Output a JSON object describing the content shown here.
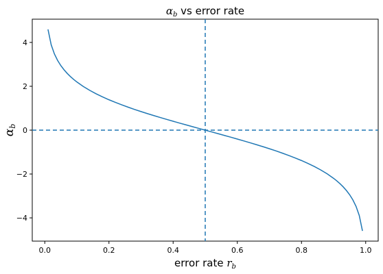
{
  "chart_data": {
    "type": "line",
    "title": {
      "symbol": "α",
      "sub": "b",
      "rest": " vs error rate"
    },
    "xlabel": {
      "text": "error rate ",
      "symbol": "r",
      "sub": "b"
    },
    "ylabel": {
      "symbol": "α",
      "sub": "b"
    },
    "xlim": [
      -0.039,
      1.039
    ],
    "ylim": [
      -5.06,
      5.06
    ],
    "xticks": [
      0.0,
      0.2,
      0.4,
      0.6,
      0.8,
      1.0
    ],
    "yticks": [
      -4,
      -2,
      0,
      2,
      4
    ],
    "xtick_labels": [
      "0.0",
      "0.2",
      "0.4",
      "0.6",
      "0.8",
      "1.0"
    ],
    "ytick_labels": [
      "−4",
      "−2",
      "0",
      "2",
      "4"
    ],
    "series": [
      {
        "color": "#1f77b4",
        "x": [
          0.01,
          0.02,
          0.03,
          0.04,
          0.05,
          0.06,
          0.07,
          0.08,
          0.09,
          0.1,
          0.12,
          0.14,
          0.16,
          0.18,
          0.2,
          0.22,
          0.24,
          0.26,
          0.28,
          0.3,
          0.32,
          0.34,
          0.36,
          0.38,
          0.4,
          0.42,
          0.44,
          0.46,
          0.48,
          0.5,
          0.52,
          0.54,
          0.56,
          0.58,
          0.6,
          0.62,
          0.64,
          0.66,
          0.68,
          0.7,
          0.72,
          0.74,
          0.76,
          0.78,
          0.8,
          0.82,
          0.84,
          0.86,
          0.88,
          0.9,
          0.91,
          0.92,
          0.93,
          0.94,
          0.95,
          0.96,
          0.97,
          0.98,
          0.99
        ],
        "y": [
          4.595,
          3.892,
          3.476,
          3.178,
          2.944,
          2.752,
          2.587,
          2.442,
          2.314,
          2.197,
          1.992,
          1.815,
          1.658,
          1.516,
          1.386,
          1.266,
          1.153,
          1.046,
          0.944,
          0.847,
          0.754,
          0.663,
          0.575,
          0.49,
          0.405,
          0.323,
          0.241,
          0.16,
          0.08,
          0.0,
          -0.08,
          -0.16,
          -0.241,
          -0.323,
          -0.405,
          -0.49,
          -0.575,
          -0.663,
          -0.754,
          -0.847,
          -0.944,
          -1.046,
          -1.153,
          -1.266,
          -1.386,
          -1.516,
          -1.658,
          -1.815,
          -1.992,
          -2.197,
          -2.314,
          -2.442,
          -2.587,
          -2.752,
          -2.944,
          -3.178,
          -3.476,
          -3.892,
          -4.595
        ]
      }
    ],
    "reference_lines": {
      "horizontal_y": 0,
      "vertical_x": 0.5,
      "style": "dashed",
      "color": "#1f77b4"
    },
    "grid": false,
    "legend": "none"
  }
}
